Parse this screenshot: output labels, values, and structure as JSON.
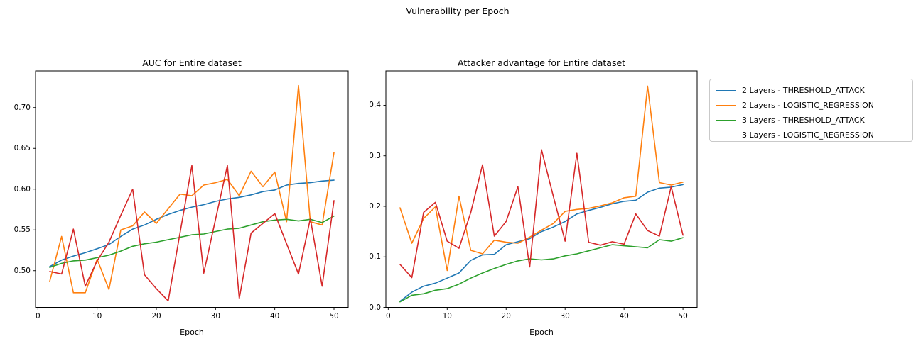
{
  "figure": {
    "suptitle": "Vulnerability per Epoch",
    "background": "#ffffff",
    "text_color": "#000000",
    "spine_color": "#000000"
  },
  "legend": {
    "entries": [
      {
        "label": "2 Layers - THRESHOLD_ATTACK",
        "color": "#1f77b4"
      },
      {
        "label": "2 Layers - LOGISTIC_REGRESSION",
        "color": "#ff7f0e"
      },
      {
        "label": "3 Layers - THRESHOLD_ATTACK",
        "color": "#2ca02c"
      },
      {
        "label": "3 Layers - LOGISTIC_REGRESSION",
        "color": "#d62728"
      }
    ]
  },
  "chart_data": [
    {
      "type": "line",
      "title": "AUC for Entire dataset",
      "xlabel": "Epoch",
      "x": [
        2,
        4,
        6,
        8,
        10,
        12,
        14,
        16,
        18,
        20,
        22,
        24,
        26,
        28,
        30,
        32,
        34,
        36,
        38,
        40,
        42,
        44,
        46,
        48,
        50
      ],
      "xlim": [
        -0.4,
        52.4
      ],
      "ylim": [
        0.455,
        0.745
      ],
      "xticks": [
        0,
        10,
        20,
        30,
        40,
        50
      ],
      "xtick_labels": [
        "0",
        "10",
        "20",
        "30",
        "40",
        "50"
      ],
      "yticks": [
        0.5,
        0.55,
        0.6,
        0.65,
        0.7
      ],
      "ytick_labels": [
        "0.50",
        "0.55",
        "0.60",
        "0.65",
        "0.70"
      ],
      "grid": false,
      "series": [
        {
          "name": "2 Layers - THRESHOLD_ATTACK",
          "color": "#1f77b4",
          "values": [
            0.505,
            0.513,
            0.518,
            0.522,
            0.527,
            0.532,
            0.542,
            0.551,
            0.556,
            0.563,
            0.569,
            0.574,
            0.578,
            0.581,
            0.585,
            0.588,
            0.59,
            0.593,
            0.597,
            0.599,
            0.605,
            0.607,
            0.608,
            0.61,
            0.611
          ]
        },
        {
          "name": "2 Layers - LOGISTIC_REGRESSION",
          "color": "#ff7f0e",
          "values": [
            0.487,
            0.542,
            0.473,
            0.473,
            0.514,
            0.477,
            0.55,
            0.555,
            0.572,
            0.558,
            0.576,
            0.594,
            0.592,
            0.605,
            0.608,
            0.612,
            0.592,
            0.622,
            0.603,
            0.621,
            0.56,
            0.727,
            0.56,
            0.556,
            0.645
          ]
        },
        {
          "name": "3 Layers - THRESHOLD_ATTACK",
          "color": "#2ca02c",
          "values": [
            0.504,
            0.509,
            0.512,
            0.513,
            0.516,
            0.519,
            0.524,
            0.53,
            0.533,
            0.535,
            0.538,
            0.541,
            0.544,
            0.545,
            0.548,
            0.551,
            0.552,
            0.556,
            0.56,
            0.562,
            0.563,
            0.561,
            0.563,
            0.559,
            0.567
          ]
        },
        {
          "name": "3 Layers - LOGISTIC_REGRESSION",
          "color": "#d62728",
          "values": [
            0.499,
            0.496,
            0.551,
            0.481,
            0.512,
            0.535,
            0.568,
            0.6,
            0.495,
            0.478,
            0.463,
            0.546,
            0.629,
            0.497,
            0.563,
            0.629,
            0.466,
            0.546,
            0.558,
            0.57,
            0.533,
            0.496,
            0.564,
            0.481,
            0.586
          ]
        }
      ]
    },
    {
      "type": "line",
      "title": "Attacker advantage for Entire dataset",
      "xlabel": "Epoch",
      "x": [
        2,
        4,
        6,
        8,
        10,
        12,
        14,
        16,
        18,
        20,
        22,
        24,
        26,
        28,
        30,
        32,
        34,
        36,
        38,
        40,
        42,
        44,
        46,
        48,
        50
      ],
      "xlim": [
        -0.4,
        52.4
      ],
      "ylim": [
        0.0,
        0.468
      ],
      "xticks": [
        0,
        10,
        20,
        30,
        40,
        50
      ],
      "xtick_labels": [
        "0",
        "10",
        "20",
        "30",
        "40",
        "50"
      ],
      "yticks": [
        0.0,
        0.1,
        0.2,
        0.3,
        0.4
      ],
      "ytick_labels": [
        "0.0",
        "0.1",
        "0.2",
        "0.3",
        "0.4"
      ],
      "grid": false,
      "series": [
        {
          "name": "2 Layers - THRESHOLD_ATTACK",
          "color": "#1f77b4",
          "values": [
            0.012,
            0.03,
            0.042,
            0.048,
            0.058,
            0.068,
            0.093,
            0.104,
            0.105,
            0.124,
            0.13,
            0.136,
            0.15,
            0.159,
            0.17,
            0.185,
            0.192,
            0.198,
            0.205,
            0.21,
            0.212,
            0.228,
            0.236,
            0.238,
            0.243
          ]
        },
        {
          "name": "2 Layers - LOGISTIC_REGRESSION",
          "color": "#ff7f0e",
          "values": [
            0.197,
            0.127,
            0.176,
            0.199,
            0.073,
            0.22,
            0.113,
            0.106,
            0.133,
            0.129,
            0.127,
            0.139,
            0.153,
            0.166,
            0.19,
            0.194,
            0.196,
            0.201,
            0.207,
            0.217,
            0.22,
            0.438,
            0.247,
            0.242,
            0.248
          ]
        },
        {
          "name": "3 Layers - THRESHOLD_ATTACK",
          "color": "#2ca02c",
          "values": [
            0.011,
            0.024,
            0.027,
            0.034,
            0.037,
            0.046,
            0.058,
            0.068,
            0.077,
            0.085,
            0.092,
            0.096,
            0.094,
            0.096,
            0.102,
            0.106,
            0.112,
            0.118,
            0.124,
            0.122,
            0.12,
            0.118,
            0.134,
            0.131,
            0.138
          ]
        },
        {
          "name": "3 Layers - LOGISTIC_REGRESSION",
          "color": "#d62728",
          "values": [
            0.085,
            0.059,
            0.188,
            0.208,
            0.131,
            0.117,
            0.188,
            0.282,
            0.141,
            0.17,
            0.239,
            0.08,
            0.312,
            0.22,
            0.131,
            0.305,
            0.129,
            0.123,
            0.13,
            0.125,
            0.185,
            0.152,
            0.141,
            0.239,
            0.143
          ]
        }
      ]
    }
  ]
}
